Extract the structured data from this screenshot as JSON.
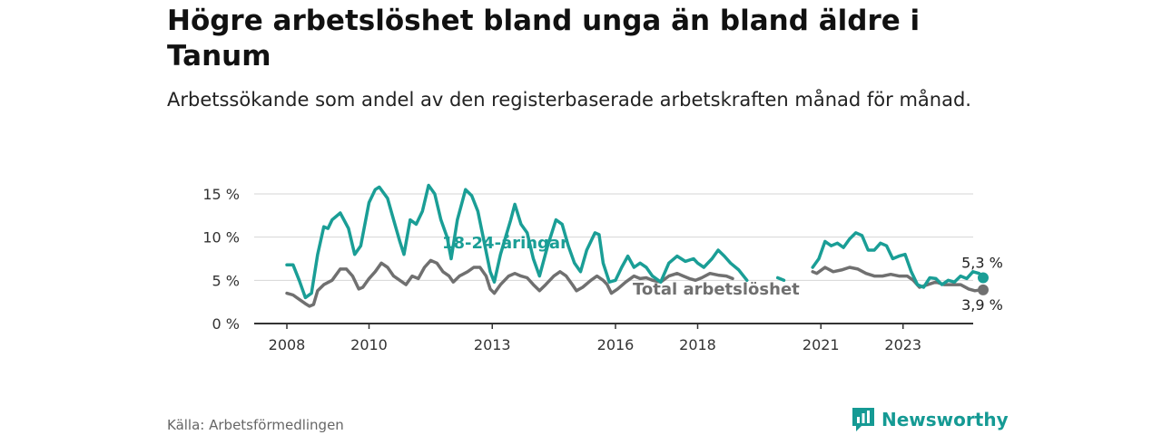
{
  "header": {
    "title": "Högre arbetslöshet bland unga än bland äldre i Tanum",
    "subtitle": "Arbetssökande som andel av den registerbaserade arbetskraften månad för månad."
  },
  "footer": {
    "source": "Källa: Arbetsförmedlingen",
    "brand": "Newsworthy"
  },
  "colors": {
    "youth": "#1a9e96",
    "total": "#707070",
    "grid": "#d6d6d6",
    "axis": "#333333",
    "brand": "#159a94"
  },
  "chart_data": {
    "type": "line",
    "title": "Högre arbetslöshet bland unga än bland äldre i Tanum",
    "xlabel": "",
    "ylabel": "",
    "xlim": [
      2008,
      2024
    ],
    "ylim": [
      0,
      15
    ],
    "y_ticks": [
      0,
      5,
      10,
      15
    ],
    "y_tick_labels": [
      "0 %",
      "5 %",
      "10 %",
      "15 %"
    ],
    "x_ticks": [
      2008,
      2010,
      2013,
      2016,
      2018,
      2021,
      2023
    ],
    "x_tick_labels": [
      "2008",
      "2010",
      "2013",
      "2016",
      "2018",
      "2021",
      "2023"
    ],
    "grid": true,
    "series": [
      {
        "name": "18-24-åringar",
        "label": "18-24-åringar",
        "end_label": "5,3 %",
        "color": "#1a9e96",
        "points": [
          [
            2008.0,
            6.8
          ],
          [
            2008.15,
            6.8
          ],
          [
            2008.3,
            5.0
          ],
          [
            2008.45,
            3.0
          ],
          [
            2008.6,
            3.5
          ],
          [
            2008.75,
            8.0
          ],
          [
            2008.9,
            11.2
          ],
          [
            2009.0,
            11.0
          ],
          [
            2009.1,
            12.0
          ],
          [
            2009.3,
            12.8
          ],
          [
            2009.5,
            11.0
          ],
          [
            2009.65,
            8.0
          ],
          [
            2009.8,
            9.0
          ],
          [
            2010.0,
            14.0
          ],
          [
            2010.15,
            15.5
          ],
          [
            2010.25,
            15.8
          ],
          [
            2010.45,
            14.5
          ],
          [
            2010.6,
            12.0
          ],
          [
            2010.75,
            9.5
          ],
          [
            2010.85,
            8.0
          ],
          [
            2011.0,
            12.0
          ],
          [
            2011.15,
            11.5
          ],
          [
            2011.3,
            13.0
          ],
          [
            2011.45,
            16.0
          ],
          [
            2011.6,
            15.0
          ],
          [
            2011.75,
            12.0
          ],
          [
            2011.9,
            10.0
          ],
          [
            2012.0,
            7.5
          ],
          [
            2012.15,
            12.0
          ],
          [
            2012.35,
            15.5
          ],
          [
            2012.5,
            14.8
          ],
          [
            2012.65,
            13.0
          ],
          [
            2012.8,
            9.5
          ],
          [
            2012.95,
            6.0
          ],
          [
            2013.05,
            4.8
          ],
          [
            2013.2,
            8.0
          ],
          [
            2013.45,
            12.0
          ],
          [
            2013.55,
            13.8
          ],
          [
            2013.7,
            11.5
          ],
          [
            2013.85,
            10.5
          ],
          [
            2014.0,
            7.5
          ],
          [
            2014.15,
            5.5
          ],
          [
            2014.35,
            9.0
          ],
          [
            2014.55,
            12.0
          ],
          [
            2014.7,
            11.5
          ],
          [
            2014.85,
            9.0
          ],
          [
            2015.0,
            7.0
          ],
          [
            2015.15,
            6.0
          ],
          [
            2015.3,
            8.5
          ],
          [
            2015.5,
            10.5
          ],
          [
            2015.6,
            10.3
          ],
          [
            2015.7,
            7.0
          ],
          [
            2015.85,
            4.8
          ],
          [
            2016.0,
            5.0
          ],
          [
            2016.15,
            6.5
          ],
          [
            2016.3,
            7.8
          ],
          [
            2016.45,
            6.5
          ],
          [
            2016.6,
            7.0
          ],
          [
            2016.75,
            6.5
          ],
          [
            2016.9,
            5.5
          ],
          [
            2017.1,
            4.8
          ],
          [
            2017.3,
            7.0
          ],
          [
            2017.5,
            7.8
          ],
          [
            2017.7,
            7.2
          ],
          [
            2017.9,
            7.5
          ],
          [
            2018.0,
            7.0
          ],
          [
            2018.15,
            6.5
          ],
          [
            2018.35,
            7.5
          ],
          [
            2018.5,
            8.5
          ],
          [
            2018.65,
            7.8
          ],
          [
            2018.8,
            7.0
          ],
          [
            2019.0,
            6.2
          ],
          [
            2019.2,
            5.0
          ],
          null,
          [
            2019.95,
            5.3
          ],
          [
            2020.1,
            5.0
          ],
          null,
          [
            2020.8,
            6.5
          ],
          [
            2020.95,
            7.5
          ],
          [
            2021.1,
            9.5
          ],
          [
            2021.25,
            9.0
          ],
          [
            2021.4,
            9.3
          ],
          [
            2021.55,
            8.8
          ],
          [
            2021.7,
            9.8
          ],
          [
            2021.85,
            10.5
          ],
          [
            2022.0,
            10.2
          ],
          [
            2022.15,
            8.5
          ],
          [
            2022.3,
            8.5
          ],
          [
            2022.45,
            9.3
          ],
          [
            2022.6,
            9.0
          ],
          [
            2022.75,
            7.5
          ],
          [
            2022.9,
            7.8
          ],
          [
            2023.05,
            8.0
          ],
          [
            2023.2,
            6.0
          ],
          [
            2023.35,
            4.5
          ],
          [
            2023.5,
            4.2
          ],
          [
            2023.65,
            5.3
          ],
          [
            2023.8,
            5.2
          ],
          [
            2023.95,
            4.5
          ],
          [
            2024.1,
            5.0
          ],
          [
            2024.25,
            4.8
          ],
          [
            2024.4,
            5.5
          ],
          [
            2024.55,
            5.2
          ],
          [
            2024.7,
            6.0
          ],
          [
            2024.85,
            5.8
          ],
          [
            2024.95,
            5.3
          ]
        ]
      },
      {
        "name": "Total arbetslöshet",
        "label": "Total arbetslöshet",
        "end_label": "3,9 %",
        "color": "#707070",
        "points": [
          [
            2008.0,
            3.5
          ],
          [
            2008.15,
            3.3
          ],
          [
            2008.3,
            2.8
          ],
          [
            2008.45,
            2.3
          ],
          [
            2008.55,
            2.0
          ],
          [
            2008.65,
            2.2
          ],
          [
            2008.75,
            3.8
          ],
          [
            2008.9,
            4.5
          ],
          [
            2009.1,
            5.0
          ],
          [
            2009.3,
            6.3
          ],
          [
            2009.45,
            6.3
          ],
          [
            2009.6,
            5.5
          ],
          [
            2009.75,
            4.0
          ],
          [
            2009.85,
            4.2
          ],
          [
            2010.0,
            5.2
          ],
          [
            2010.15,
            6.0
          ],
          [
            2010.3,
            7.0
          ],
          [
            2010.45,
            6.5
          ],
          [
            2010.6,
            5.5
          ],
          [
            2010.75,
            5.0
          ],
          [
            2010.9,
            4.5
          ],
          [
            2011.05,
            5.5
          ],
          [
            2011.2,
            5.2
          ],
          [
            2011.35,
            6.5
          ],
          [
            2011.5,
            7.3
          ],
          [
            2011.65,
            7.0
          ],
          [
            2011.8,
            6.0
          ],
          [
            2011.95,
            5.5
          ],
          [
            2012.05,
            4.8
          ],
          [
            2012.2,
            5.5
          ],
          [
            2012.4,
            6.0
          ],
          [
            2012.55,
            6.5
          ],
          [
            2012.7,
            6.5
          ],
          [
            2012.85,
            5.5
          ],
          [
            2012.95,
            4.0
          ],
          [
            2013.05,
            3.5
          ],
          [
            2013.2,
            4.5
          ],
          [
            2013.4,
            5.5
          ],
          [
            2013.55,
            5.8
          ],
          [
            2013.7,
            5.5
          ],
          [
            2013.85,
            5.3
          ],
          [
            2014.0,
            4.5
          ],
          [
            2014.15,
            3.8
          ],
          [
            2014.3,
            4.5
          ],
          [
            2014.5,
            5.5
          ],
          [
            2014.65,
            6.0
          ],
          [
            2014.8,
            5.5
          ],
          [
            2014.95,
            4.5
          ],
          [
            2015.05,
            3.8
          ],
          [
            2015.2,
            4.2
          ],
          [
            2015.4,
            5.0
          ],
          [
            2015.55,
            5.5
          ],
          [
            2015.7,
            5.0
          ],
          [
            2015.8,
            4.5
          ],
          [
            2015.9,
            3.5
          ],
          [
            2016.05,
            4.0
          ],
          [
            2016.25,
            4.8
          ],
          [
            2016.45,
            5.5
          ],
          [
            2016.6,
            5.2
          ],
          [
            2016.75,
            5.3
          ],
          [
            2016.9,
            5.0
          ],
          [
            2017.1,
            4.8
          ],
          [
            2017.3,
            5.5
          ],
          [
            2017.5,
            5.8
          ],
          [
            2017.65,
            5.5
          ],
          [
            2017.8,
            5.2
          ],
          [
            2017.95,
            5.0
          ],
          [
            2018.1,
            5.3
          ],
          [
            2018.3,
            5.8
          ],
          [
            2018.5,
            5.6
          ],
          [
            2018.7,
            5.5
          ],
          [
            2018.85,
            5.2
          ],
          null,
          [
            2020.8,
            6.0
          ],
          [
            2020.9,
            5.8
          ],
          [
            2021.1,
            6.5
          ],
          [
            2021.3,
            6.0
          ],
          [
            2021.5,
            6.2
          ],
          [
            2021.7,
            6.5
          ],
          [
            2021.9,
            6.3
          ],
          [
            2022.1,
            5.8
          ],
          [
            2022.3,
            5.5
          ],
          [
            2022.5,
            5.5
          ],
          [
            2022.7,
            5.7
          ],
          [
            2022.9,
            5.5
          ],
          [
            2023.1,
            5.5
          ],
          [
            2023.25,
            5.0
          ],
          [
            2023.4,
            4.2
          ],
          [
            2023.6,
            4.5
          ],
          [
            2023.8,
            4.8
          ],
          [
            2024.0,
            4.5
          ],
          [
            2024.2,
            4.5
          ],
          [
            2024.4,
            4.5
          ],
          [
            2024.6,
            4.0
          ],
          [
            2024.75,
            3.8
          ],
          [
            2024.9,
            3.9
          ],
          [
            2024.95,
            3.9
          ]
        ]
      }
    ]
  }
}
